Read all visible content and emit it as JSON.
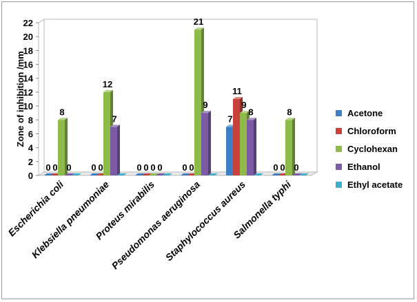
{
  "chart_data": {
    "type": "bar",
    "ylabel": "Zone of inhibition /mm",
    "ylim": [
      0,
      22
    ],
    "yticks": [
      0,
      2,
      4,
      6,
      8,
      10,
      12,
      14,
      16,
      18,
      20,
      22
    ],
    "grid": false,
    "legend_position": "right",
    "categories": [
      "Escherichia coli",
      "Klebsiella pneumoniae",
      "Proteus mirabilis",
      "Pseudomonas aeruginosa",
      "Staphylococcus aureus",
      "Salmonella typhi"
    ],
    "series": [
      {
        "name": "Acetone",
        "color": "#3d7fc4",
        "values": [
          0,
          0,
          0,
          0,
          7,
          0
        ]
      },
      {
        "name": "Chloroform",
        "color": "#c8413b",
        "values": [
          0,
          0,
          0,
          0,
          11,
          0
        ]
      },
      {
        "name": "Cyclohexan",
        "color": "#8dba48",
        "values": [
          8,
          12,
          0,
          21,
          9,
          8
        ]
      },
      {
        "name": "Ethanol",
        "color": "#7b5ba6",
        "values": [
          0,
          7,
          0,
          9,
          8,
          0
        ]
      },
      {
        "name": "Ethyl acetate",
        "color": "#3fb0cc",
        "values": [
          0,
          0,
          0,
          0,
          0,
          0
        ]
      }
    ],
    "data_labels": [
      [
        "0",
        "0",
        "8",
        "0",
        null
      ],
      [
        "0",
        "0",
        "12",
        "7",
        null
      ],
      [
        "0",
        "0",
        "0",
        "0",
        null
      ],
      [
        "0",
        "0",
        "21",
        "9",
        null
      ],
      [
        "7",
        "11",
        "9",
        "8",
        null
      ],
      [
        "0",
        "0",
        "8",
        "0",
        null
      ]
    ]
  }
}
